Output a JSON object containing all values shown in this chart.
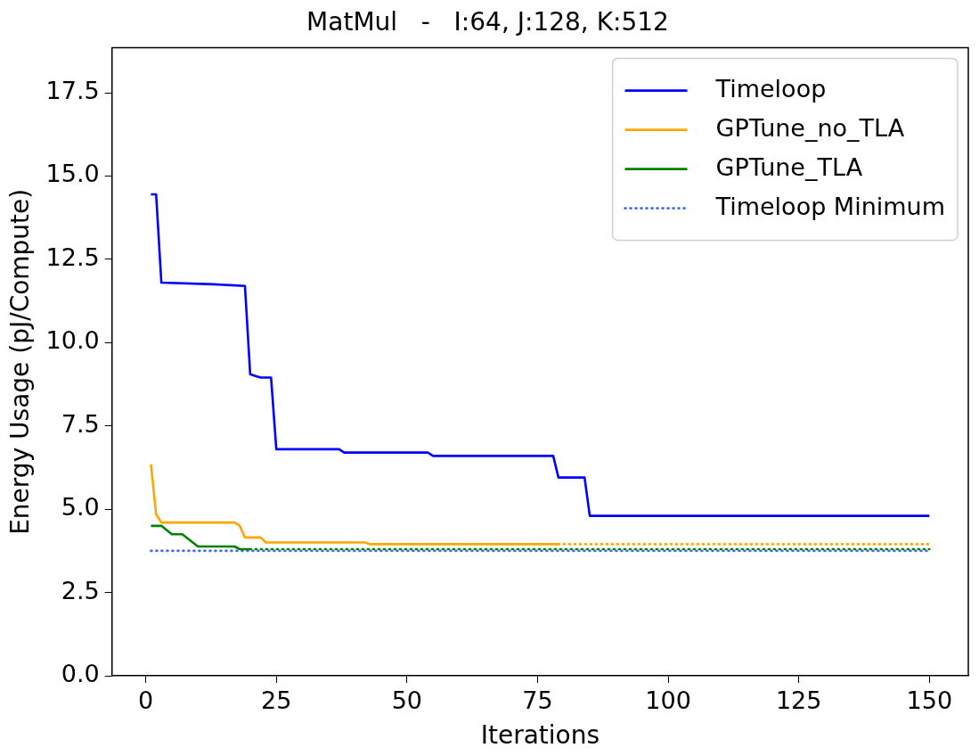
{
  "chart_data": {
    "type": "line",
    "title": "MatMul   -   I:64, J:128, K:512",
    "xlabel": "Iterations",
    "ylabel": "Energy Usage (pJ/Compute)",
    "xlim": [
      -6.45,
      157.45
    ],
    "xticks": [
      0,
      25,
      50,
      75,
      100,
      125,
      150
    ],
    "ylim": [
      0,
      18.85
    ],
    "yticks": [
      {
        "value": 0,
        "label": "0.0"
      },
      {
        "value": 2.5,
        "label": "2.5"
      },
      {
        "value": 5,
        "label": "5.0"
      },
      {
        "value": 7.5,
        "label": "7.5"
      },
      {
        "value": 10,
        "label": "10.0"
      },
      {
        "value": 12.5,
        "label": "12.5"
      },
      {
        "value": 15,
        "label": "15.0"
      },
      {
        "value": 17.5,
        "label": "17.5"
      }
    ],
    "grid": false,
    "legend": "top right",
    "marker": "none",
    "series": [
      {
        "name": "Timeloop",
        "color": "#0000ff",
        "line_style": "solid",
        "x": [
          1,
          2,
          3,
          13,
          19,
          20,
          21,
          22,
          24,
          25,
          37,
          38,
          54,
          55,
          78,
          79,
          84,
          85,
          150
        ],
        "values": [
          14.45,
          14.45,
          11.8,
          11.75,
          11.7,
          9.05,
          9.0,
          8.95,
          8.95,
          6.8,
          6.8,
          6.7,
          6.7,
          6.6,
          6.6,
          5.95,
          5.95,
          4.8,
          4.8
        ]
      },
      {
        "name": "GPTune_no_TLA",
        "color": "#ffa500",
        "line_style": "solid",
        "x": [
          1,
          2,
          3,
          17,
          18,
          19,
          22,
          23,
          42,
          43,
          79
        ],
        "values": [
          6.35,
          4.85,
          4.6,
          4.6,
          4.5,
          4.15,
          4.15,
          4.0,
          4.0,
          3.95,
          3.95
        ]
      },
      {
        "name": "GPTune_TLA",
        "color": "#008000",
        "line_style": "solid",
        "x": [
          1,
          3,
          5,
          7,
          10,
          17,
          18,
          20
        ],
        "values": [
          4.5,
          4.5,
          4.25,
          4.25,
          3.88,
          3.88,
          3.8,
          3.8
        ]
      },
      {
        "name": "Timeloop Minimum",
        "color": "#4169e1",
        "line_style": "dotted",
        "x": [
          1,
          150
        ],
        "values": [
          3.75,
          3.75
        ]
      },
      {
        "color": "#ffa500",
        "line_style": "dotted",
        "x": [
          79,
          150
        ],
        "values": [
          3.95,
          3.95
        ]
      },
      {
        "color": "#008000",
        "line_style": "dotted",
        "x": [
          20,
          150
        ],
        "values": [
          3.8,
          3.8
        ]
      }
    ]
  }
}
